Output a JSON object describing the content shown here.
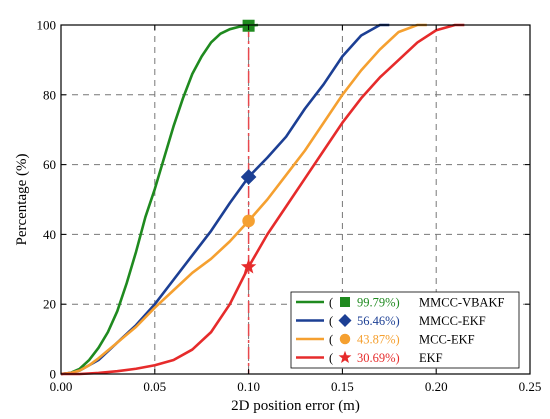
{
  "chart_data": {
    "type": "line",
    "title": "",
    "xlabel": "2D position error (m)",
    "ylabel": "Percentage (%)",
    "xlim": [
      0,
      0.25
    ],
    "ylim": [
      0,
      100
    ],
    "xticks": [
      "0.00",
      "0.05",
      "0.10",
      "0.15",
      "0.20",
      "0.25"
    ],
    "yticks": [
      "0",
      "20",
      "40",
      "60",
      "80",
      "100"
    ],
    "grid": true,
    "grid_style": "dashed",
    "legend_position": "bottom-right",
    "reference_line": {
      "x": 0.1,
      "color": "#e8484d",
      "style": "dash-dot"
    },
    "series": [
      {
        "name": "MMCC-VBAKF",
        "percent_label": "99.79%)",
        "color": "#1f8a1f",
        "marker": "square",
        "marker_point": [
          0.1,
          99.79
        ],
        "x": [
          0,
          0.005,
          0.01,
          0.015,
          0.02,
          0.025,
          0.03,
          0.035,
          0.04,
          0.045,
          0.05,
          0.055,
          0.06,
          0.065,
          0.07,
          0.075,
          0.08,
          0.085,
          0.09,
          0.095,
          0.1,
          0.105
        ],
        "y": [
          0,
          0.3,
          1.5,
          4,
          7.5,
          12,
          18,
          26,
          35,
          45,
          53,
          62,
          71,
          79,
          86,
          91,
          95,
          97.5,
          98.8,
          99.5,
          99.79,
          100
        ]
      },
      {
        "name": "MMCC-EKF",
        "percent_label": "56.46%)",
        "color": "#1c3f94",
        "marker": "diamond",
        "marker_point": [
          0.1,
          56.46
        ],
        "x": [
          0,
          0.005,
          0.01,
          0.015,
          0.02,
          0.03,
          0.04,
          0.05,
          0.06,
          0.07,
          0.08,
          0.09,
          0.1,
          0.11,
          0.12,
          0.13,
          0.14,
          0.15,
          0.16,
          0.17,
          0.175
        ],
        "y": [
          0,
          0.3,
          1,
          2.5,
          4,
          9,
          14,
          20,
          27,
          34,
          41,
          49,
          56.46,
          62,
          68,
          76,
          83,
          91,
          97,
          100,
          100
        ]
      },
      {
        "name": "MCC-EKF",
        "percent_label": "43.87%)",
        "color": "#f5a030",
        "marker": "circle",
        "marker_point": [
          0.1,
          43.87
        ],
        "x": [
          0,
          0.005,
          0.01,
          0.015,
          0.02,
          0.03,
          0.04,
          0.05,
          0.06,
          0.07,
          0.08,
          0.09,
          0.1,
          0.11,
          0.12,
          0.13,
          0.14,
          0.15,
          0.16,
          0.17,
          0.18,
          0.19,
          0.195
        ],
        "y": [
          0,
          0.3,
          1,
          2.5,
          4.5,
          9,
          13.5,
          19,
          24,
          29,
          33,
          38,
          43.87,
          50,
          57,
          64,
          72,
          80,
          87,
          93,
          98,
          100,
          100
        ]
      },
      {
        "name": "EKF",
        "percent_label": "30.69%)",
        "color": "#e62b2b",
        "marker": "star",
        "marker_point": [
          0.1,
          30.69
        ],
        "x": [
          0,
          0.01,
          0.02,
          0.03,
          0.04,
          0.05,
          0.06,
          0.07,
          0.08,
          0.09,
          0.1,
          0.11,
          0.12,
          0.13,
          0.14,
          0.15,
          0.16,
          0.17,
          0.18,
          0.19,
          0.2,
          0.21,
          0.215
        ],
        "y": [
          0,
          0,
          0.3,
          0.8,
          1.5,
          2.5,
          4,
          7,
          12,
          20,
          30.69,
          40,
          48,
          56,
          64,
          72,
          79,
          85,
          90,
          95,
          98.5,
          100,
          100
        ]
      }
    ],
    "legend_paren": "("
  }
}
